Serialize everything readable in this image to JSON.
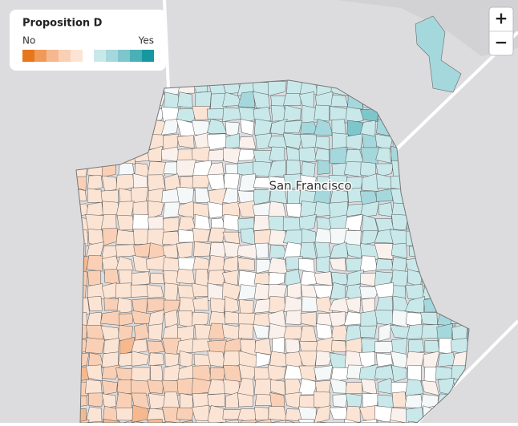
{
  "legend": {
    "title": "Proposition D",
    "low_label": "No",
    "high_label": "Yes",
    "no_colors": [
      "#e8761b",
      "#f09a5a",
      "#f6b88f",
      "#f9d0b5",
      "#fce4d4"
    ],
    "yes_colors": [
      "#c9e8ea",
      "#a5d8dc",
      "#7cc6cc",
      "#4aafb6",
      "#17979f"
    ]
  },
  "map": {
    "city_label": "San Francisco"
  },
  "controls": {
    "zoom_in": "+",
    "zoom_out": "−"
  }
}
